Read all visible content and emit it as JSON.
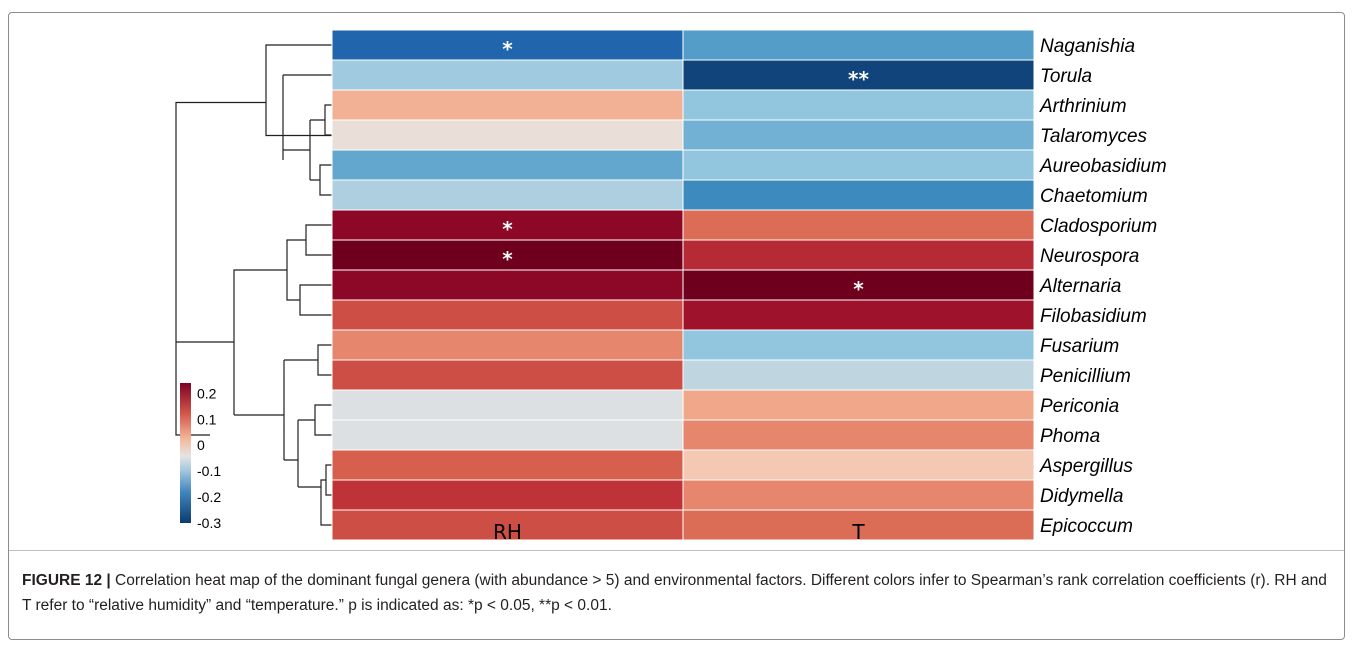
{
  "chart_data": {
    "type": "heatmap",
    "columns": [
      "RH",
      "T"
    ],
    "rows": [
      "Naganishia",
      "Torula",
      "Arthrinium",
      "Talaromyces",
      "Aureobasidium",
      "Chaetomium",
      "Cladosporium",
      "Neurospora",
      "Alternaria",
      "Filobasidium",
      "Fusarium",
      "Penicillium",
      "Periconia",
      "Phoma",
      "Aspergillus",
      "Didymella",
      "Epicoccum"
    ],
    "values": [
      [
        -0.25,
        -0.19
      ],
      [
        -0.13,
        -0.29
      ],
      [
        0.03,
        -0.15
      ],
      [
        -0.04,
        -0.17
      ],
      [
        -0.18,
        -0.15
      ],
      [
        -0.11,
        -0.21
      ],
      [
        0.21,
        0.09
      ],
      [
        0.24,
        0.16
      ],
      [
        0.21,
        0.24
      ],
      [
        0.12,
        0.19
      ],
      [
        0.07,
        -0.15
      ],
      [
        0.12,
        -0.09
      ],
      [
        -0.06,
        0.04
      ],
      [
        -0.06,
        0.07
      ],
      [
        0.1,
        0.0
      ],
      [
        0.15,
        0.07
      ],
      [
        0.12,
        0.09
      ]
    ],
    "significance": [
      [
        "*",
        ""
      ],
      [
        "",
        "**"
      ],
      [
        "",
        ""
      ],
      [
        "",
        ""
      ],
      [
        "",
        ""
      ],
      [
        "",
        ""
      ],
      [
        "*",
        ""
      ],
      [
        "*",
        ""
      ],
      [
        "",
        "*"
      ],
      [
        "",
        ""
      ],
      [
        "",
        ""
      ],
      [
        "",
        ""
      ],
      [
        "",
        ""
      ],
      [
        "",
        ""
      ],
      [
        "",
        ""
      ],
      [
        "",
        ""
      ],
      [
        "",
        ""
      ]
    ],
    "color_range": [
      -0.3,
      0.24
    ],
    "legend": {
      "ticks": [
        0.2,
        0.1,
        0,
        -0.1,
        -0.2,
        -0.3
      ],
      "tick_labels": [
        "0.2",
        "0.1",
        "0",
        "-0.1",
        "-0.2",
        "-0.3"
      ],
      "placement": "left"
    },
    "colors": {
      "negative": "#1d5a9e",
      "neutral": "#e9e6e2",
      "positive": "#7d0224"
    },
    "dendrogram": "row clustering tree drawn on the left"
  },
  "caption": {
    "label": "FIGURE 12 |",
    "text": " Correlation heat map of the dominant fungal genera (with abundance > 5) and environmental factors. Different colors infer to Spearman’s rank correlation coefficients (r). RH and T refer to “relative humidity” and “temperature.” p is indicated as: *p < 0.05, **p < 0.01."
  }
}
